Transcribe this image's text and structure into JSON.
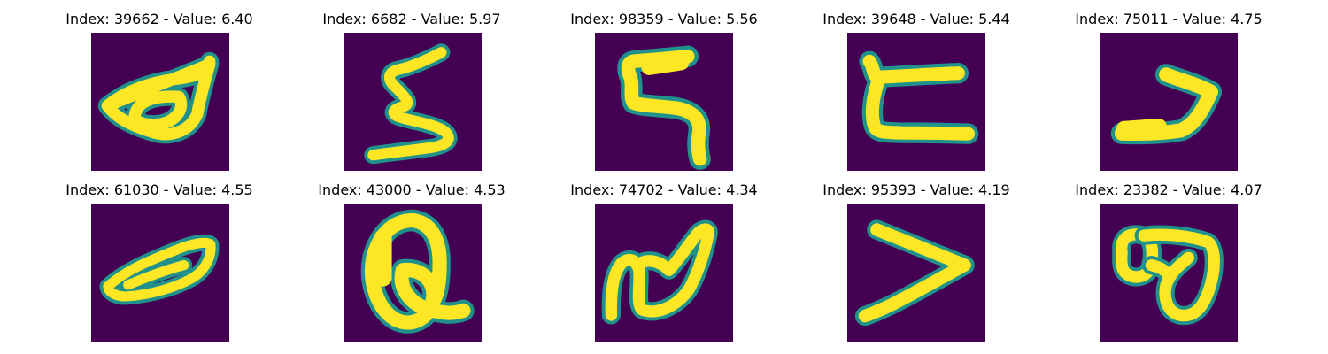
{
  "panels": [
    {
      "index": "39662",
      "value": "6.40",
      "title": "Index: 39662 - Value: 6.40",
      "glyph_icon": "emnist-char-d-rotated"
    },
    {
      "index": "6682",
      "value": "5.97",
      "title": "Index: 6682 - Value: 5.97",
      "glyph_icon": "emnist-char-s"
    },
    {
      "index": "98359",
      "value": "5.56",
      "title": "Index: 98359 - Value: 5.56",
      "glyph_icon": "emnist-char-5"
    },
    {
      "index": "39648",
      "value": "5.44",
      "title": "Index: 39648 - Value: 5.44",
      "glyph_icon": "emnist-char-c-square"
    },
    {
      "index": "75011",
      "value": "4.75",
      "title": "Index: 75011 - Value: 4.75",
      "glyph_icon": "emnist-char-arrow"
    },
    {
      "index": "61030",
      "value": "4.55",
      "title": "Index: 61030 - Value: 4.55",
      "glyph_icon": "emnist-char-d-rotated"
    },
    {
      "index": "43000",
      "value": "4.53",
      "title": "Index: 43000 - Value: 4.53",
      "glyph_icon": "emnist-char-Q"
    },
    {
      "index": "74702",
      "value": "4.34",
      "title": "Index: 74702 - Value: 4.34",
      "glyph_icon": "emnist-char-n-script"
    },
    {
      "index": "95393",
      "value": "4.19",
      "title": "Index: 95393 - Value: 4.19",
      "glyph_icon": "emnist-char-greater-than"
    },
    {
      "index": "23382",
      "value": "4.07",
      "title": "Index: 23382 - Value: 4.07",
      "glyph_icon": "emnist-char-8"
    }
  ],
  "colors": {
    "background": "#440154",
    "stroke_core": "#fde725",
    "stroke_edge": "#21918c",
    "stroke_mid": "#5ec962"
  }
}
